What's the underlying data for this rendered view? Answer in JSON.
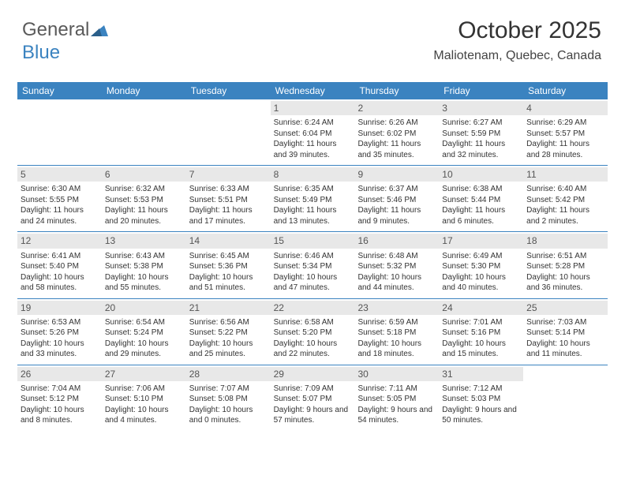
{
  "logo": {
    "part1": "General",
    "part2": "Blue"
  },
  "header": {
    "title": "October 2025",
    "location": "Maliotenam, Quebec, Canada"
  },
  "colors": {
    "header_bg": "#3b83c0",
    "header_text": "#ffffff",
    "daynum_bg": "#e8e8e8",
    "border": "#3b83c0",
    "text": "#333333"
  },
  "dayNames": [
    "Sunday",
    "Monday",
    "Tuesday",
    "Wednesday",
    "Thursday",
    "Friday",
    "Saturday"
  ],
  "weeks": [
    [
      {
        "num": "",
        "sunrise": "",
        "sunset": "",
        "daylight": ""
      },
      {
        "num": "",
        "sunrise": "",
        "sunset": "",
        "daylight": ""
      },
      {
        "num": "",
        "sunrise": "",
        "sunset": "",
        "daylight": ""
      },
      {
        "num": "1",
        "sunrise": "Sunrise: 6:24 AM",
        "sunset": "Sunset: 6:04 PM",
        "daylight": "Daylight: 11 hours and 39 minutes."
      },
      {
        "num": "2",
        "sunrise": "Sunrise: 6:26 AM",
        "sunset": "Sunset: 6:02 PM",
        "daylight": "Daylight: 11 hours and 35 minutes."
      },
      {
        "num": "3",
        "sunrise": "Sunrise: 6:27 AM",
        "sunset": "Sunset: 5:59 PM",
        "daylight": "Daylight: 11 hours and 32 minutes."
      },
      {
        "num": "4",
        "sunrise": "Sunrise: 6:29 AM",
        "sunset": "Sunset: 5:57 PM",
        "daylight": "Daylight: 11 hours and 28 minutes."
      }
    ],
    [
      {
        "num": "5",
        "sunrise": "Sunrise: 6:30 AM",
        "sunset": "Sunset: 5:55 PM",
        "daylight": "Daylight: 11 hours and 24 minutes."
      },
      {
        "num": "6",
        "sunrise": "Sunrise: 6:32 AM",
        "sunset": "Sunset: 5:53 PM",
        "daylight": "Daylight: 11 hours and 20 minutes."
      },
      {
        "num": "7",
        "sunrise": "Sunrise: 6:33 AM",
        "sunset": "Sunset: 5:51 PM",
        "daylight": "Daylight: 11 hours and 17 minutes."
      },
      {
        "num": "8",
        "sunrise": "Sunrise: 6:35 AM",
        "sunset": "Sunset: 5:49 PM",
        "daylight": "Daylight: 11 hours and 13 minutes."
      },
      {
        "num": "9",
        "sunrise": "Sunrise: 6:37 AM",
        "sunset": "Sunset: 5:46 PM",
        "daylight": "Daylight: 11 hours and 9 minutes."
      },
      {
        "num": "10",
        "sunrise": "Sunrise: 6:38 AM",
        "sunset": "Sunset: 5:44 PM",
        "daylight": "Daylight: 11 hours and 6 minutes."
      },
      {
        "num": "11",
        "sunrise": "Sunrise: 6:40 AM",
        "sunset": "Sunset: 5:42 PM",
        "daylight": "Daylight: 11 hours and 2 minutes."
      }
    ],
    [
      {
        "num": "12",
        "sunrise": "Sunrise: 6:41 AM",
        "sunset": "Sunset: 5:40 PM",
        "daylight": "Daylight: 10 hours and 58 minutes."
      },
      {
        "num": "13",
        "sunrise": "Sunrise: 6:43 AM",
        "sunset": "Sunset: 5:38 PM",
        "daylight": "Daylight: 10 hours and 55 minutes."
      },
      {
        "num": "14",
        "sunrise": "Sunrise: 6:45 AM",
        "sunset": "Sunset: 5:36 PM",
        "daylight": "Daylight: 10 hours and 51 minutes."
      },
      {
        "num": "15",
        "sunrise": "Sunrise: 6:46 AM",
        "sunset": "Sunset: 5:34 PM",
        "daylight": "Daylight: 10 hours and 47 minutes."
      },
      {
        "num": "16",
        "sunrise": "Sunrise: 6:48 AM",
        "sunset": "Sunset: 5:32 PM",
        "daylight": "Daylight: 10 hours and 44 minutes."
      },
      {
        "num": "17",
        "sunrise": "Sunrise: 6:49 AM",
        "sunset": "Sunset: 5:30 PM",
        "daylight": "Daylight: 10 hours and 40 minutes."
      },
      {
        "num": "18",
        "sunrise": "Sunrise: 6:51 AM",
        "sunset": "Sunset: 5:28 PM",
        "daylight": "Daylight: 10 hours and 36 minutes."
      }
    ],
    [
      {
        "num": "19",
        "sunrise": "Sunrise: 6:53 AM",
        "sunset": "Sunset: 5:26 PM",
        "daylight": "Daylight: 10 hours and 33 minutes."
      },
      {
        "num": "20",
        "sunrise": "Sunrise: 6:54 AM",
        "sunset": "Sunset: 5:24 PM",
        "daylight": "Daylight: 10 hours and 29 minutes."
      },
      {
        "num": "21",
        "sunrise": "Sunrise: 6:56 AM",
        "sunset": "Sunset: 5:22 PM",
        "daylight": "Daylight: 10 hours and 25 minutes."
      },
      {
        "num": "22",
        "sunrise": "Sunrise: 6:58 AM",
        "sunset": "Sunset: 5:20 PM",
        "daylight": "Daylight: 10 hours and 22 minutes."
      },
      {
        "num": "23",
        "sunrise": "Sunrise: 6:59 AM",
        "sunset": "Sunset: 5:18 PM",
        "daylight": "Daylight: 10 hours and 18 minutes."
      },
      {
        "num": "24",
        "sunrise": "Sunrise: 7:01 AM",
        "sunset": "Sunset: 5:16 PM",
        "daylight": "Daylight: 10 hours and 15 minutes."
      },
      {
        "num": "25",
        "sunrise": "Sunrise: 7:03 AM",
        "sunset": "Sunset: 5:14 PM",
        "daylight": "Daylight: 10 hours and 11 minutes."
      }
    ],
    [
      {
        "num": "26",
        "sunrise": "Sunrise: 7:04 AM",
        "sunset": "Sunset: 5:12 PM",
        "daylight": "Daylight: 10 hours and 8 minutes."
      },
      {
        "num": "27",
        "sunrise": "Sunrise: 7:06 AM",
        "sunset": "Sunset: 5:10 PM",
        "daylight": "Daylight: 10 hours and 4 minutes."
      },
      {
        "num": "28",
        "sunrise": "Sunrise: 7:07 AM",
        "sunset": "Sunset: 5:08 PM",
        "daylight": "Daylight: 10 hours and 0 minutes."
      },
      {
        "num": "29",
        "sunrise": "Sunrise: 7:09 AM",
        "sunset": "Sunset: 5:07 PM",
        "daylight": "Daylight: 9 hours and 57 minutes."
      },
      {
        "num": "30",
        "sunrise": "Sunrise: 7:11 AM",
        "sunset": "Sunset: 5:05 PM",
        "daylight": "Daylight: 9 hours and 54 minutes."
      },
      {
        "num": "31",
        "sunrise": "Sunrise: 7:12 AM",
        "sunset": "Sunset: 5:03 PM",
        "daylight": "Daylight: 9 hours and 50 minutes."
      },
      {
        "num": "",
        "sunrise": "",
        "sunset": "",
        "daylight": ""
      }
    ]
  ]
}
